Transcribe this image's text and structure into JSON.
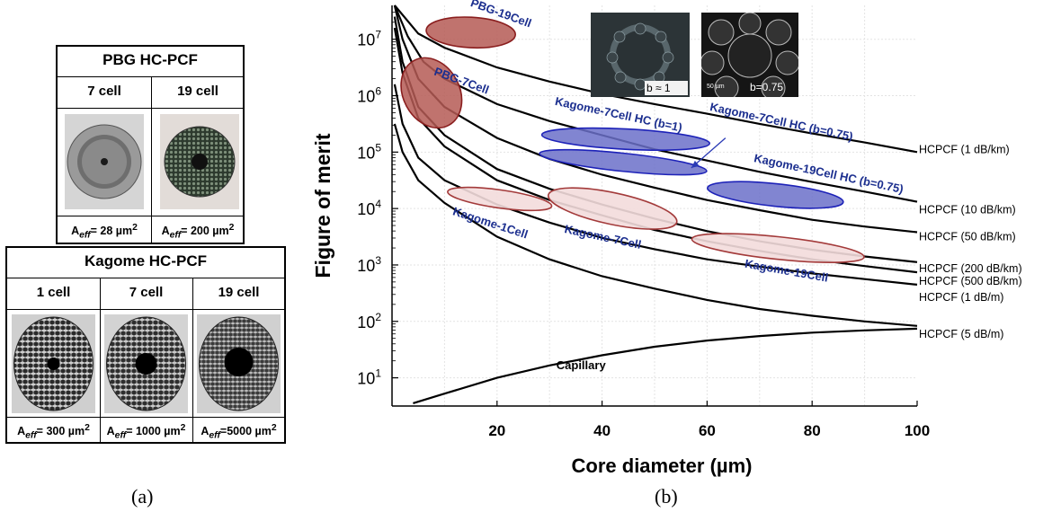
{
  "panel_labels": {
    "a": "(a)",
    "b": "(b)"
  },
  "pbg_table": {
    "title": "PBG HC-PCF",
    "columns": [
      "7 cell",
      "19 cell"
    ],
    "aeff": [
      {
        "prefix": "A",
        "sub": "eff",
        "text": "= 28 µm",
        "sup": "2"
      },
      {
        "prefix": "A",
        "sub": "eff",
        "text": "= 200 µm",
        "sup": "2"
      }
    ]
  },
  "kagome_table": {
    "title": "Kagome HC-PCF",
    "columns": [
      "1 cell",
      "7 cell",
      "19 cell"
    ],
    "aeff": [
      {
        "prefix": "A",
        "sub": "eff",
        "text": "= 300 µm",
        "sup": "2"
      },
      {
        "prefix": "A",
        "sub": "eff",
        "text": "= 1000 µm",
        "sup": "2"
      },
      {
        "prefix": "A",
        "sub": "eff",
        "text": "=5000 µm",
        "sup": "2"
      }
    ]
  },
  "insets": {
    "left_label": "b ≈ 1",
    "right_label": "b=0.75",
    "right_scale": "50 µm"
  },
  "chart_data": {
    "type": "line",
    "xlabel": "Core diameter (µm)",
    "ylabel": "Figure of merit",
    "xlim": [
      0,
      100
    ],
    "ylim_log10": [
      0.5,
      7.6
    ],
    "yscale": "log",
    "x_ticks": [
      20,
      40,
      60,
      80,
      100
    ],
    "y_ticks": [
      {
        "base": "10",
        "exp": "1",
        "log": 1
      },
      {
        "base": "10",
        "exp": "2",
        "log": 2
      },
      {
        "base": "10",
        "exp": "3",
        "log": 3
      },
      {
        "base": "10",
        "exp": "4",
        "log": 4
      },
      {
        "base": "10",
        "exp": "5",
        "log": 5
      },
      {
        "base": "10",
        "exp": "6",
        "log": 6
      },
      {
        "base": "10",
        "exp": "7",
        "log": 7
      }
    ],
    "grid": true,
    "series": [
      {
        "name": "HCPCF (1 dB/km)",
        "points": [
          [
            0.5,
            7.6
          ],
          [
            5,
            7.1
          ],
          [
            10,
            6.85
          ],
          [
            20,
            6.5
          ],
          [
            30,
            6.25
          ],
          [
            40,
            6.03
          ],
          [
            50,
            5.85
          ],
          [
            60,
            5.68
          ],
          [
            70,
            5.5
          ],
          [
            80,
            5.33
          ],
          [
            90,
            5.17
          ],
          [
            100,
            5.0
          ]
        ]
      },
      {
        "name": "HCPCF (10 dB/km)",
        "points": [
          [
            0.5,
            7.6
          ],
          [
            3,
            7.05
          ],
          [
            6,
            6.6
          ],
          [
            10,
            6.3
          ],
          [
            20,
            5.85
          ],
          [
            30,
            5.55
          ],
          [
            40,
            5.3
          ],
          [
            50,
            5.05
          ],
          [
            60,
            4.85
          ],
          [
            70,
            4.65
          ],
          [
            80,
            4.47
          ],
          [
            90,
            4.3
          ],
          [
            100,
            4.12
          ]
        ]
      },
      {
        "name": "HCPCF (50 dB/km)",
        "points": [
          [
            0.5,
            7.6
          ],
          [
            2,
            7.0
          ],
          [
            5,
            6.3
          ],
          [
            10,
            5.8
          ],
          [
            20,
            5.25
          ],
          [
            30,
            4.88
          ],
          [
            40,
            4.6
          ],
          [
            50,
            4.37
          ],
          [
            60,
            4.15
          ],
          [
            70,
            3.97
          ],
          [
            80,
            3.8
          ],
          [
            90,
            3.68
          ],
          [
            100,
            3.58
          ]
        ]
      },
      {
        "name": "HCPCF (200 dB/km)",
        "points": [
          [
            0.5,
            7.4
          ],
          [
            2,
            6.6
          ],
          [
            5,
            5.8
          ],
          [
            10,
            5.3
          ],
          [
            20,
            4.7
          ],
          [
            30,
            4.35
          ],
          [
            40,
            4.07
          ],
          [
            50,
            3.82
          ],
          [
            60,
            3.6
          ],
          [
            70,
            3.42
          ],
          [
            80,
            3.27
          ],
          [
            90,
            3.15
          ],
          [
            100,
            3.05
          ]
        ]
      },
      {
        "name": "HCPCF (500 dB/km)",
        "points": [
          [
            0.5,
            7.2
          ],
          [
            2,
            6.4
          ],
          [
            5,
            5.6
          ],
          [
            10,
            5.1
          ],
          [
            20,
            4.5
          ],
          [
            30,
            4.15
          ],
          [
            40,
            3.88
          ],
          [
            50,
            3.62
          ],
          [
            60,
            3.42
          ],
          [
            70,
            3.25
          ],
          [
            80,
            3.1
          ],
          [
            90,
            2.98
          ],
          [
            100,
            2.87
          ]
        ]
      },
      {
        "name": "HCPCF (1 dB/m)",
        "points": [
          [
            0.5,
            6.2
          ],
          [
            2,
            5.5
          ],
          [
            5,
            4.9
          ],
          [
            10,
            4.5
          ],
          [
            20,
            4.07
          ],
          [
            30,
            3.75
          ],
          [
            40,
            3.48
          ],
          [
            50,
            3.28
          ],
          [
            60,
            3.1
          ],
          [
            70,
            2.97
          ],
          [
            80,
            2.85
          ],
          [
            90,
            2.75
          ],
          [
            100,
            2.65
          ]
        ]
      },
      {
        "name": "HCPCF (5 dB/m)",
        "points": [
          [
            0.5,
            5.5
          ],
          [
            2,
            5.0
          ],
          [
            5,
            4.5
          ],
          [
            10,
            4.1
          ],
          [
            20,
            3.5
          ],
          [
            30,
            3.1
          ],
          [
            40,
            2.8
          ],
          [
            50,
            2.58
          ],
          [
            60,
            2.38
          ],
          [
            70,
            2.22
          ],
          [
            80,
            2.1
          ],
          [
            90,
            2.0
          ],
          [
            100,
            1.92
          ]
        ]
      },
      {
        "name": "Capillary",
        "points": [
          [
            4,
            0.55
          ],
          [
            10,
            0.72
          ],
          [
            20,
            1.0
          ],
          [
            30,
            1.22
          ],
          [
            40,
            1.4
          ],
          [
            50,
            1.55
          ],
          [
            60,
            1.66
          ],
          [
            70,
            1.74
          ],
          [
            80,
            1.8
          ],
          [
            90,
            1.84
          ],
          [
            100,
            1.87
          ]
        ]
      }
    ],
    "regions": [
      {
        "name": "PBG-19Cell",
        "cx": 15,
        "cy": 7.12,
        "rx": 8.5,
        "ry": 0.27,
        "angle": 3,
        "kind": "pbg"
      },
      {
        "name": "PBG-7Cell",
        "cx": 7.5,
        "cy": 6.05,
        "rx": 7.0,
        "ry": 0.5,
        "angle": 62,
        "kind": "pbg"
      },
      {
        "name": "Kagome-7Cell HC (b=1)",
        "cx": 44.5,
        "cy": 5.23,
        "rx": 16,
        "ry": 0.18,
        "angle": 3,
        "kind": "kagome_hc"
      },
      {
        "name": "Kagome-7Cell HC (b=0.75)",
        "cx": 44,
        "cy": 4.82,
        "rx": 16,
        "ry": 0.16,
        "angle": 6,
        "kind": "kagome_hc"
      },
      {
        "name": "Kagome-19Cell HC (b=0.75)",
        "cx": 73,
        "cy": 4.24,
        "rx": 13,
        "ry": 0.2,
        "angle": 6,
        "kind": "kagome_hc"
      },
      {
        "name": "Kagome-1Cell",
        "cx": 20.5,
        "cy": 4.17,
        "rx": 10,
        "ry": 0.16,
        "angle": 8,
        "kind": "kagome"
      },
      {
        "name": "Kagome-7Cell",
        "cx": 42,
        "cy": 4.0,
        "rx": 12.5,
        "ry": 0.28,
        "angle": 12,
        "kind": "kagome"
      },
      {
        "name": "Kagome-19Cell",
        "cx": 73.5,
        "cy": 3.3,
        "rx": 16.5,
        "ry": 0.2,
        "angle": 6,
        "kind": "kagome"
      }
    ],
    "region_labels": [
      {
        "text": "PBG-19Cell",
        "x": 20.5,
        "y": 7.4,
        "angle": 20
      },
      {
        "text": "PBG-7Cell",
        "x": 13,
        "y": 6.2,
        "angle": 20
      },
      {
        "text": "Kagome-7Cell HC (b=1)",
        "x": 43,
        "y": 5.6,
        "angle": 12
      },
      {
        "text": "Kagome-7Cell HC (b=0.75)",
        "x": 74,
        "y": 5.47,
        "angle": 12
      },
      {
        "text": "Kagome-19Cell HC (b=0.75)",
        "x": 83,
        "y": 4.55,
        "angle": 12
      },
      {
        "text": "Kagome-1Cell",
        "x": 18.5,
        "y": 3.68,
        "angle": 18
      },
      {
        "text": "Kagome-7Cell",
        "x": 40,
        "y": 3.43,
        "angle": 12
      },
      {
        "text": "Kagome-19Cell",
        "x": 75,
        "y": 2.83,
        "angle": 10
      }
    ],
    "capillary_label": {
      "text": "Capillary",
      "x": 36,
      "y": 1.15
    },
    "colors": {
      "pbg_fill": "#b55a55",
      "pbg_stroke": "#8a1e1e",
      "kagome_fill": "#f3dcdb",
      "kagome_stroke": "#a33a3a",
      "hc_fill": "#6b70c9",
      "hc_stroke": "#1d22b8",
      "label_blue": "#1c2f8f"
    }
  }
}
